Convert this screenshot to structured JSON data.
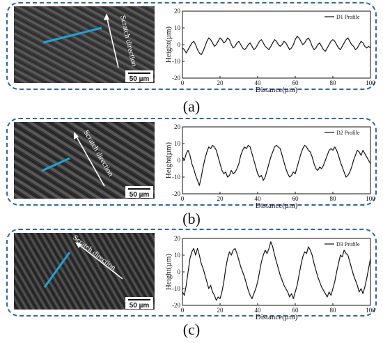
{
  "figure": {
    "panels": [
      {
        "tag": "(a)",
        "image": {
          "direction_label": "Scratch direction",
          "scale_label": "50 µm",
          "profile_line_color": "#1fa3d8"
        },
        "chart_data": {
          "type": "line",
          "xlabel": "Distance(µm)",
          "ylabel": "Height(µm)",
          "xlim": [
            0,
            100
          ],
          "ylim": [
            -20,
            20
          ],
          "xticks": [
            0,
            20,
            40,
            60,
            80,
            100
          ],
          "yticks": [
            -20,
            -10,
            0,
            10,
            20
          ],
          "legend_position": "top-right",
          "series": [
            {
              "name": "D1 Profile",
              "x": [
                0,
                1,
                2,
                3,
                4,
                5,
                6,
                7,
                8,
                9,
                10,
                11,
                12,
                13,
                14,
                15,
                16,
                17,
                18,
                19,
                20,
                21,
                22,
                23,
                24,
                25,
                26,
                27,
                28,
                29,
                30,
                31,
                32,
                33,
                34,
                35,
                36,
                37,
                38,
                39,
                40,
                41,
                42,
                43,
                44,
                45,
                46,
                47,
                48,
                49,
                50,
                51,
                52,
                53,
                54,
                55,
                56,
                57,
                58,
                59,
                60,
                61,
                62,
                63,
                64,
                65,
                66,
                67,
                68,
                69,
                70,
                71,
                72,
                73,
                74,
                75,
                76,
                77,
                78,
                79,
                80,
                81,
                82,
                83,
                84,
                85,
                86,
                87,
                88,
                89,
                90,
                91,
                92,
                93,
                94,
                95,
                96,
                97,
                98,
                99,
                100
              ],
              "y": [
                -2,
                -3,
                -5,
                -3,
                -1,
                1,
                2,
                0,
                -3,
                -5,
                -6,
                -4,
                -1,
                2,
                4,
                3,
                1,
                -1,
                0,
                2,
                4,
                3,
                1,
                2,
                4,
                3,
                0,
                -2,
                -1,
                1,
                2,
                0,
                -2,
                -3,
                -2,
                0,
                1,
                -1,
                -3,
                -2,
                0,
                2,
                3,
                1,
                -1,
                -2,
                -3,
                -1,
                1,
                3,
                2,
                0,
                -1,
                0,
                2,
                1,
                -1,
                -3,
                -2,
                0,
                3,
                5,
                4,
                2,
                0,
                1,
                3,
                4,
                2,
                -1,
                -3,
                -2,
                0,
                1,
                -1,
                -3,
                -4,
                -2,
                0,
                2,
                3,
                2,
                0,
                -2,
                -3,
                -1,
                1,
                3,
                4,
                2,
                0,
                -1,
                -3,
                -2,
                0,
                2,
                1,
                -1,
                -2,
                -1,
                -2
              ]
            }
          ]
        }
      },
      {
        "tag": "(b)",
        "image": {
          "direction_label": "Scratch direction",
          "scale_label": "50 µm",
          "profile_line_color": "#1fa3d8"
        },
        "chart_data": {
          "type": "line",
          "xlabel": "Distance(µm)",
          "ylabel": "Height(µm)",
          "xlim": [
            0,
            100
          ],
          "ylim": [
            -20,
            20
          ],
          "xticks": [
            0,
            20,
            40,
            60,
            80,
            100
          ],
          "yticks": [
            -20,
            -10,
            0,
            10,
            20
          ],
          "legend_position": "top-right",
          "series": [
            {
              "name": "D2 Profile",
              "x": [
                0,
                1,
                2,
                3,
                4,
                5,
                6,
                7,
                8,
                9,
                10,
                11,
                12,
                13,
                14,
                15,
                16,
                17,
                18,
                19,
                20,
                21,
                22,
                23,
                24,
                25,
                26,
                27,
                28,
                29,
                30,
                31,
                32,
                33,
                34,
                35,
                36,
                37,
                38,
                39,
                40,
                41,
                42,
                43,
                44,
                45,
                46,
                47,
                48,
                49,
                50,
                51,
                52,
                53,
                54,
                55,
                56,
                57,
                58,
                59,
                60,
                61,
                62,
                63,
                64,
                65,
                66,
                67,
                68,
                69,
                70,
                71,
                72,
                73,
                74,
                75,
                76,
                77,
                78,
                79,
                80,
                81,
                82,
                83,
                84,
                85,
                86,
                87,
                88,
                89,
                90,
                91,
                92,
                93,
                94,
                95,
                96,
                97,
                98,
                99,
                100
              ],
              "y": [
                2,
                0,
                4,
                6,
                3,
                -2,
                -5,
                -9,
                -12,
                -15,
                -10,
                -4,
                1,
                5,
                8,
                7,
                9,
                8,
                6,
                2,
                -2,
                -6,
                -8,
                -7,
                -10,
                -9,
                -6,
                -8,
                -7,
                -5,
                -2,
                3,
                6,
                8,
                7,
                9,
                8,
                4,
                0,
                -4,
                -8,
                -10,
                -9,
                -12,
                -10,
                -6,
                -2,
                2,
                5,
                8,
                9,
                8,
                7,
                3,
                -1,
                -5,
                -8,
                -10,
                -9,
                -7,
                -8,
                -4,
                0,
                4,
                7,
                9,
                8,
                6,
                5,
                2,
                -2,
                -5,
                -6,
                -4,
                -5,
                -3,
                0,
                3,
                6,
                7,
                6,
                8,
                6,
                3,
                -1,
                -4,
                -7,
                -10,
                -9,
                -7,
                -4,
                0,
                3,
                6,
                5,
                3,
                6,
                4,
                2,
                0,
                -2
              ]
            }
          ]
        }
      },
      {
        "tag": "(c)",
        "image": {
          "direction_label": "Scratch direction",
          "scale_label": "50 µm",
          "profile_line_color": "#1fa3d8"
        },
        "chart_data": {
          "type": "line",
          "xlabel": "Distance(µm)",
          "ylabel": "Height(µm)",
          "xlim": [
            0,
            100
          ],
          "ylim": [
            -20,
            20
          ],
          "xticks": [
            0,
            20,
            40,
            60,
            80,
            100
          ],
          "yticks": [
            -20,
            -10,
            0,
            10,
            20
          ],
          "legend_position": "top-right",
          "series": [
            {
              "name": "D3 Profile",
              "x": [
                0,
                1,
                2,
                3,
                4,
                5,
                6,
                7,
                8,
                9,
                10,
                11,
                12,
                13,
                14,
                15,
                16,
                17,
                18,
                19,
                20,
                21,
                22,
                23,
                24,
                25,
                26,
                27,
                28,
                29,
                30,
                31,
                32,
                33,
                34,
                35,
                36,
                37,
                38,
                39,
                40,
                41,
                42,
                43,
                44,
                45,
                46,
                47,
                48,
                49,
                50,
                51,
                52,
                53,
                54,
                55,
                56,
                57,
                58,
                59,
                60,
                61,
                62,
                63,
                64,
                65,
                66,
                67,
                68,
                69,
                70,
                71,
                72,
                73,
                74,
                75,
                76,
                77,
                78,
                79,
                80,
                81,
                82,
                83,
                84,
                85,
                86,
                87,
                88,
                89,
                90,
                91,
                92,
                93,
                94,
                95,
                96,
                97,
                98,
                99,
                100
              ],
              "y": [
                -12,
                -14,
                -8,
                0,
                8,
                12,
                14,
                10,
                14,
                10,
                5,
                2,
                -2,
                -6,
                -10,
                -8,
                -12,
                -14,
                -17,
                -15,
                -16,
                -12,
                -6,
                2,
                8,
                12,
                10,
                13,
                14,
                11,
                7,
                3,
                0,
                -3,
                -7,
                -11,
                -14,
                -16,
                -13,
                -10,
                -6,
                0,
                6,
                10,
                13,
                11,
                14,
                18,
                15,
                10,
                6,
                2,
                -2,
                -5,
                -8,
                -10,
                -12,
                -15,
                -13,
                -16,
                -12,
                -8,
                -2,
                4,
                9,
                12,
                11,
                15,
                13,
                10,
                5,
                1,
                -3,
                -6,
                -9,
                -11,
                -13,
                -15,
                -12,
                -14,
                -10,
                -6,
                0,
                5,
                10,
                9,
                13,
                11,
                10,
                6,
                2,
                -2,
                -5,
                -8,
                -12,
                -10,
                -13,
                -9,
                -4,
                2,
                8
              ]
            }
          ]
        }
      }
    ]
  }
}
